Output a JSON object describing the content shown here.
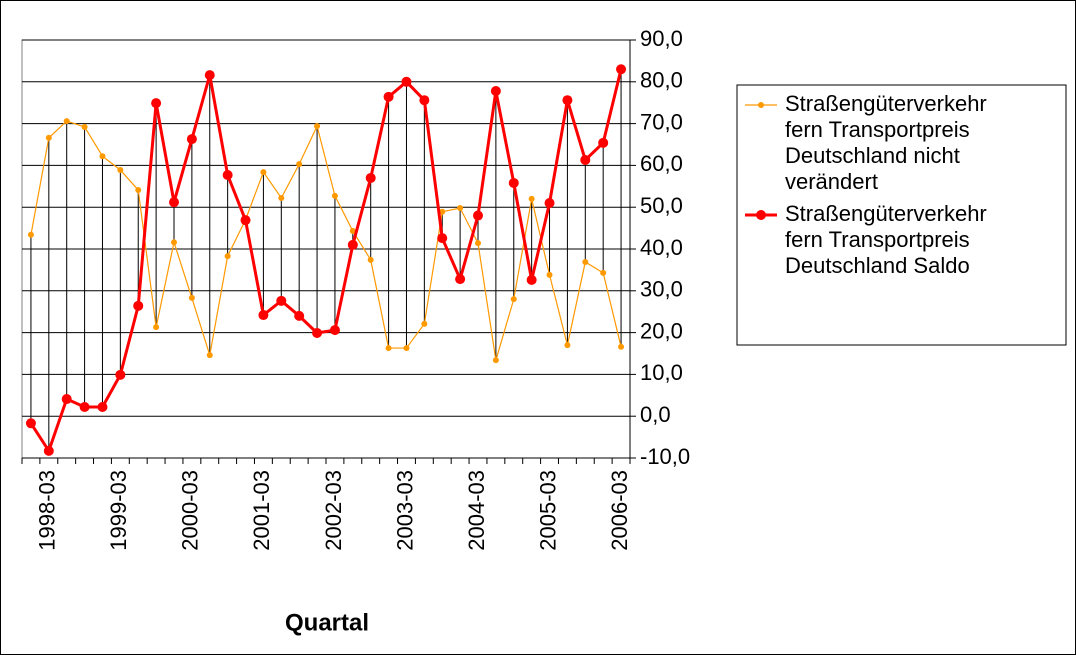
{
  "chart_data": {
    "type": "line",
    "x_label": "Quartal",
    "categories": [
      null,
      "1998-03",
      null,
      null,
      null,
      "1999-03",
      null,
      null,
      null,
      "2000-03",
      null,
      null,
      null,
      "2001-03",
      null,
      null,
      null,
      "2002-03",
      null,
      null,
      null,
      "2003-03",
      null,
      null,
      null,
      "2004-03",
      null,
      null,
      null,
      "2005-03",
      null,
      null,
      null,
      "2006-03"
    ],
    "series": [
      {
        "name": "Straßengüterverkehr fern Transportpreis Deutschland nicht verändert",
        "color": "#ff9900",
        "values": [
          43.4,
          66.6,
          70.6,
          69.2,
          62.2,
          58.9,
          54.1,
          21.3,
          41.6,
          28.3,
          14.6,
          38.3,
          47,
          58.4,
          52.2,
          60.3,
          69.4,
          52.7,
          44.3,
          37.4,
          16.3,
          16.3,
          22.1,
          48.9,
          49.8,
          41.4,
          13.4,
          28.0,
          52.0,
          33.8,
          17.0,
          36.9,
          34.3,
          16.6
        ]
      },
      {
        "name": "Straßengüterverkehr fern Transportpreis Deutschland Saldo",
        "color": "#ff0000",
        "values": [
          -1.7,
          -8.3,
          4.1,
          2.2,
          2.2,
          9.9,
          26.4,
          74.9,
          51.2,
          66.3,
          81.6,
          57.7,
          46.9,
          24.2,
          27.6,
          24.0,
          19.9,
          20.6,
          41.0,
          57.0,
          76.4,
          80.0,
          75.6,
          42.6,
          32.8,
          48.0,
          77.8,
          55.8,
          32.6,
          51.0,
          75.6,
          61.3,
          65.4,
          83.0
        ]
      }
    ],
    "ylim": [
      -10,
      90
    ],
    "yticks": [
      {
        "value": -10,
        "label": "-10,0"
      },
      {
        "value": 0,
        "label": "0,0"
      },
      {
        "value": 10,
        "label": "10,0"
      },
      {
        "value": 20,
        "label": "20,0"
      },
      {
        "value": 30,
        "label": "30,0"
      },
      {
        "value": 40,
        "label": "40,0"
      },
      {
        "value": 50,
        "label": "50,0"
      },
      {
        "value": 60,
        "label": "60,0"
      },
      {
        "value": 70,
        "label": "70,0"
      },
      {
        "value": 80,
        "label": "80,0"
      },
      {
        "value": 90,
        "label": "90,0"
      }
    ],
    "y_axis_side": "right",
    "grid": true,
    "high_low_lines": true,
    "legend": "right"
  }
}
